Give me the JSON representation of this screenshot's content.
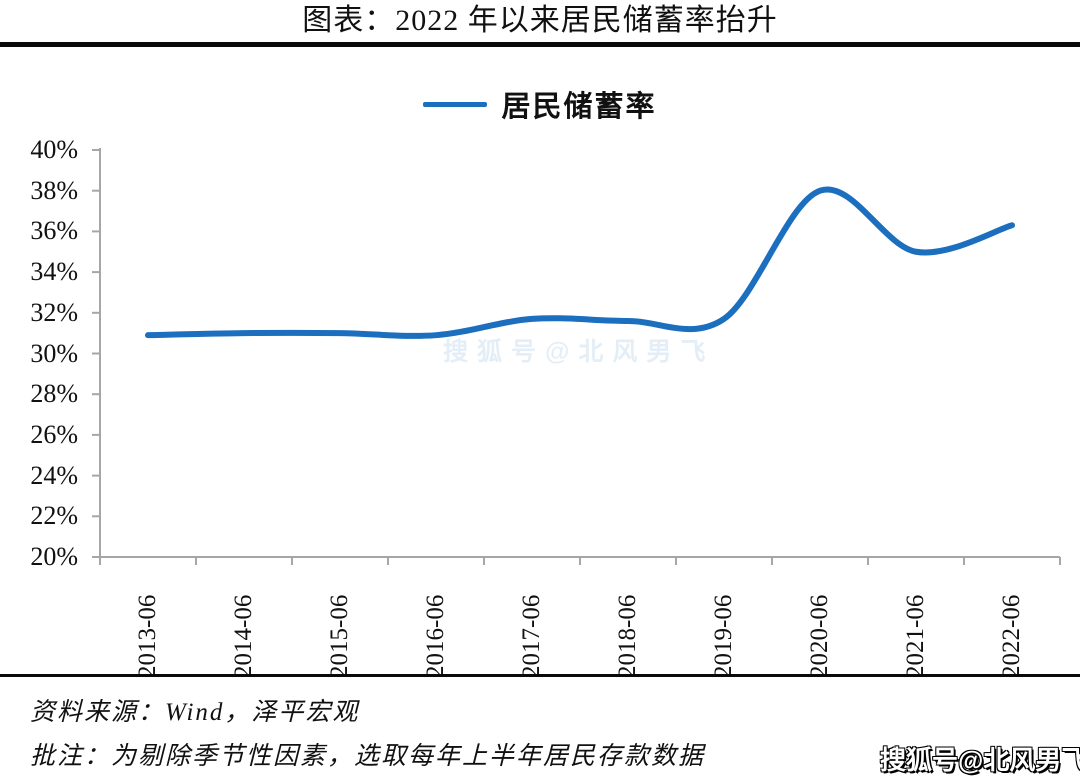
{
  "header": {
    "title": "图表：2022 年以来居民储蓄率抬升"
  },
  "chart_data": {
    "type": "line",
    "title": "图表：2022 年以来居民储蓄率抬升",
    "legend_entries": [
      "居民储蓄率"
    ],
    "legend_position": "top-center",
    "categories": [
      "2013-06",
      "2014-06",
      "2015-06",
      "2016-06",
      "2017-06",
      "2018-06",
      "2019-06",
      "2020-06",
      "2021-06",
      "2022-06"
    ],
    "series": [
      {
        "name": "居民储蓄率",
        "values": [
          30.9,
          31.0,
          31.0,
          30.9,
          31.7,
          31.6,
          31.7,
          38.0,
          35.0,
          36.3
        ]
      }
    ],
    "xlabel": "",
    "ylabel": "",
    "ylim": [
      20,
      40
    ],
    "y_tick_step": 2,
    "y_tick_labels": [
      "40%",
      "38%",
      "36%",
      "34%",
      "32%",
      "30%",
      "28%",
      "26%",
      "24%",
      "22%",
      "20%"
    ],
    "grid": false,
    "smooth": true,
    "line_color": "#1b6fbe",
    "axis_color": "#a6a6a6"
  },
  "footer": {
    "source": "资料来源：Wind，泽平宏观",
    "note": "批注：为剔除季节性因素，选取每年上半年居民存款数据"
  },
  "watermarks": {
    "corner": "搜狐号@北风男飞",
    "faint": "搜狐号@北风男飞"
  }
}
